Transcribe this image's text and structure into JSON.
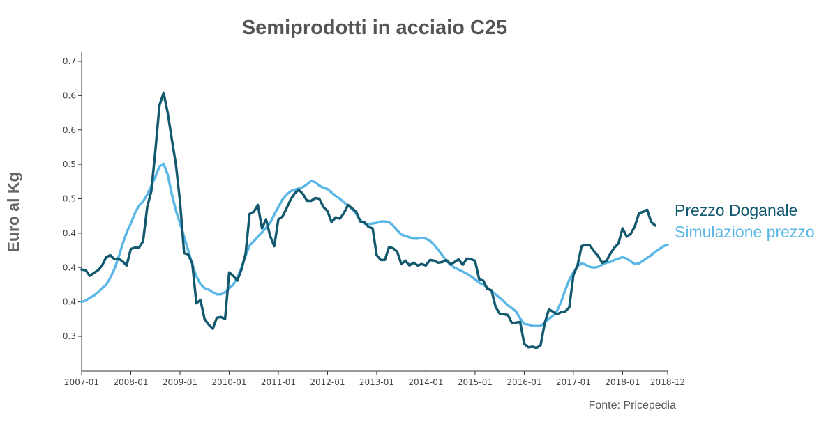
{
  "chart_data": {
    "type": "line",
    "title": "Semiprodotti in acciaio C25",
    "ylabel": "Euro al Kg",
    "xlabel": "",
    "source": "Fonte: Pricepedia",
    "ylim": [
      0.25,
      0.7
    ],
    "y_ticks": [
      0.3,
      0.35,
      0.4,
      0.45,
      0.5,
      0.55,
      0.6,
      0.65,
      0.7
    ],
    "y_tick_labels": [
      "0.3",
      "0.4",
      "0.4",
      "0.4",
      "0.5",
      "0.5",
      "0.6",
      "0.6",
      "0.7"
    ],
    "x_start": "2007-01",
    "x_end": "2018-12",
    "x_ticks": [
      "2007-01",
      "2008-01",
      "2009-01",
      "2010-01",
      "2011-01",
      "2012-01",
      "2013-01",
      "2014-01",
      "2015-01",
      "2016-01",
      "2017-01",
      "2018-01",
      "2018-12"
    ],
    "legend_position": "right",
    "series": [
      {
        "name": "Prezzo Doganale",
        "color": "#12586e",
        "points": [
          [
            "2007-01",
            0.397
          ],
          [
            "2007-02",
            0.396
          ],
          [
            "2007-03",
            0.388
          ],
          [
            "2007-04",
            0.392
          ],
          [
            "2007-05",
            0.396
          ],
          [
            "2007-06",
            0.403
          ],
          [
            "2007-07",
            0.415
          ],
          [
            "2007-08",
            0.418
          ],
          [
            "2007-09",
            0.412
          ],
          [
            "2007-10",
            0.413
          ],
          [
            "2007-11",
            0.409
          ],
          [
            "2007-12",
            0.403
          ],
          [
            "2008-01",
            0.427
          ],
          [
            "2008-02",
            0.429
          ],
          [
            "2008-03",
            0.429
          ],
          [
            "2008-04",
            0.438
          ],
          [
            "2008-05",
            0.488
          ],
          [
            "2008-06",
            0.511
          ],
          [
            "2008-07",
            0.57
          ],
          [
            "2008-08",
            0.636
          ],
          [
            "2008-09",
            0.654
          ],
          [
            "2008-10",
            0.625
          ],
          [
            "2008-11",
            0.587
          ],
          [
            "2008-12",
            0.55
          ],
          [
            "2009-01",
            0.496
          ],
          [
            "2009-02",
            0.421
          ],
          [
            "2009-03",
            0.419
          ],
          [
            "2009-04",
            0.406
          ],
          [
            "2009-05",
            0.348
          ],
          [
            "2009-06",
            0.353
          ],
          [
            "2009-07",
            0.325
          ],
          [
            "2009-08",
            0.317
          ],
          [
            "2009-09",
            0.311
          ],
          [
            "2009-10",
            0.327
          ],
          [
            "2009-11",
            0.328
          ],
          [
            "2009-12",
            0.325
          ],
          [
            "2010-01",
            0.393
          ],
          [
            "2010-02",
            0.388
          ],
          [
            "2010-03",
            0.381
          ],
          [
            "2010-04",
            0.397
          ],
          [
            "2010-05",
            0.42
          ],
          [
            "2010-06",
            0.478
          ],
          [
            "2010-07",
            0.481
          ],
          [
            "2010-08",
            0.491
          ],
          [
            "2010-09",
            0.457
          ],
          [
            "2010-10",
            0.47
          ],
          [
            "2010-11",
            0.446
          ],
          [
            "2010-12",
            0.431
          ],
          [
            "2011-01",
            0.47
          ],
          [
            "2011-02",
            0.474
          ],
          [
            "2011-03",
            0.486
          ],
          [
            "2011-04",
            0.499
          ],
          [
            "2011-05",
            0.508
          ],
          [
            "2011-06",
            0.513
          ],
          [
            "2011-07",
            0.507
          ],
          [
            "2011-08",
            0.497
          ],
          [
            "2011-09",
            0.497
          ],
          [
            "2011-10",
            0.501
          ],
          [
            "2011-11",
            0.5
          ],
          [
            "2011-12",
            0.488
          ],
          [
            "2012-01",
            0.482
          ],
          [
            "2012-02",
            0.466
          ],
          [
            "2012-03",
            0.473
          ],
          [
            "2012-04",
            0.471
          ],
          [
            "2012-05",
            0.479
          ],
          [
            "2012-06",
            0.491
          ],
          [
            "2012-07",
            0.486
          ],
          [
            "2012-08",
            0.481
          ],
          [
            "2012-09",
            0.467
          ],
          [
            "2012-10",
            0.466
          ],
          [
            "2012-11",
            0.459
          ],
          [
            "2012-12",
            0.457
          ],
          [
            "2013-01",
            0.418
          ],
          [
            "2013-02",
            0.411
          ],
          [
            "2013-03",
            0.411
          ],
          [
            "2013-04",
            0.43
          ],
          [
            "2013-05",
            0.428
          ],
          [
            "2013-06",
            0.423
          ],
          [
            "2013-07",
            0.405
          ],
          [
            "2013-08",
            0.41
          ],
          [
            "2013-09",
            0.403
          ],
          [
            "2013-10",
            0.407
          ],
          [
            "2013-11",
            0.403
          ],
          [
            "2013-12",
            0.405
          ],
          [
            "2014-01",
            0.403
          ],
          [
            "2014-02",
            0.411
          ],
          [
            "2014-03",
            0.41
          ],
          [
            "2014-04",
            0.407
          ],
          [
            "2014-05",
            0.408
          ],
          [
            "2014-06",
            0.411
          ],
          [
            "2014-07",
            0.405
          ],
          [
            "2014-08",
            0.408
          ],
          [
            "2014-09",
            0.412
          ],
          [
            "2014-10",
            0.404
          ],
          [
            "2014-11",
            0.413
          ],
          [
            "2014-12",
            0.412
          ],
          [
            "2015-01",
            0.41
          ],
          [
            "2015-02",
            0.383
          ],
          [
            "2015-03",
            0.381
          ],
          [
            "2015-04",
            0.369
          ],
          [
            "2015-05",
            0.367
          ],
          [
            "2015-06",
            0.343
          ],
          [
            "2015-07",
            0.333
          ],
          [
            "2015-08",
            0.332
          ],
          [
            "2015-09",
            0.331
          ],
          [
            "2015-10",
            0.319
          ],
          [
            "2015-11",
            0.32
          ],
          [
            "2015-12",
            0.321
          ],
          [
            "2016-01",
            0.289
          ],
          [
            "2016-02",
            0.284
          ],
          [
            "2016-03",
            0.285
          ],
          [
            "2016-04",
            0.283
          ],
          [
            "2016-05",
            0.287
          ],
          [
            "2016-06",
            0.319
          ],
          [
            "2016-07",
            0.339
          ],
          [
            "2016-08",
            0.336
          ],
          [
            "2016-09",
            0.332
          ],
          [
            "2016-10",
            0.335
          ],
          [
            "2016-11",
            0.336
          ],
          [
            "2016-12",
            0.342
          ],
          [
            "2017-01",
            0.389
          ],
          [
            "2017-02",
            0.403
          ],
          [
            "2017-03",
            0.431
          ],
          [
            "2017-04",
            0.433
          ],
          [
            "2017-05",
            0.432
          ],
          [
            "2017-06",
            0.424
          ],
          [
            "2017-07",
            0.417
          ],
          [
            "2017-08",
            0.407
          ],
          [
            "2017-09",
            0.409
          ],
          [
            "2017-10",
            0.42
          ],
          [
            "2017-11",
            0.429
          ],
          [
            "2017-12",
            0.435
          ],
          [
            "2018-01",
            0.457
          ],
          [
            "2018-02",
            0.445
          ],
          [
            "2018-03",
            0.449
          ],
          [
            "2018-04",
            0.46
          ],
          [
            "2018-05",
            0.479
          ],
          [
            "2018-06",
            0.481
          ],
          [
            "2018-07",
            0.484
          ],
          [
            "2018-08",
            0.466
          ],
          [
            "2018-09",
            0.461
          ]
        ]
      },
      {
        "name": "Simulazione prezzo",
        "color": "#5bb8e6",
        "points": [
          [
            "2007-01",
            0.35
          ],
          [
            "2007-02",
            0.352
          ],
          [
            "2007-03",
            0.356
          ],
          [
            "2007-04",
            0.359
          ],
          [
            "2007-05",
            0.364
          ],
          [
            "2007-06",
            0.37
          ],
          [
            "2007-07",
            0.375
          ],
          [
            "2007-08",
            0.385
          ],
          [
            "2007-09",
            0.398
          ],
          [
            "2007-10",
            0.415
          ],
          [
            "2007-11",
            0.434
          ],
          [
            "2007-12",
            0.451
          ],
          [
            "2008-01",
            0.464
          ],
          [
            "2008-02",
            0.479
          ],
          [
            "2008-03",
            0.49
          ],
          [
            "2008-04",
            0.496
          ],
          [
            "2008-05",
            0.506
          ],
          [
            "2008-06",
            0.519
          ],
          [
            "2008-07",
            0.532
          ],
          [
            "2008-08",
            0.547
          ],
          [
            "2008-09",
            0.551
          ],
          [
            "2008-10",
            0.535
          ],
          [
            "2008-11",
            0.507
          ],
          [
            "2008-12",
            0.483
          ],
          [
            "2009-01",
            0.464
          ],
          [
            "2009-02",
            0.445
          ],
          [
            "2009-03",
            0.425
          ],
          [
            "2009-04",
            0.405
          ],
          [
            "2009-05",
            0.387
          ],
          [
            "2009-06",
            0.376
          ],
          [
            "2009-07",
            0.37
          ],
          [
            "2009-08",
            0.368
          ],
          [
            "2009-09",
            0.364
          ],
          [
            "2009-10",
            0.361
          ],
          [
            "2009-11",
            0.361
          ],
          [
            "2009-12",
            0.364
          ],
          [
            "2010-01",
            0.37
          ],
          [
            "2010-02",
            0.375
          ],
          [
            "2010-03",
            0.385
          ],
          [
            "2010-04",
            0.4
          ],
          [
            "2010-05",
            0.417
          ],
          [
            "2010-06",
            0.432
          ],
          [
            "2010-07",
            0.438
          ],
          [
            "2010-08",
            0.445
          ],
          [
            "2010-09",
            0.451
          ],
          [
            "2010-10",
            0.458
          ],
          [
            "2010-11",
            0.465
          ],
          [
            "2010-12",
            0.477
          ],
          [
            "2011-01",
            0.488
          ],
          [
            "2011-02",
            0.499
          ],
          [
            "2011-03",
            0.506
          ],
          [
            "2011-04",
            0.511
          ],
          [
            "2011-05",
            0.513
          ],
          [
            "2011-06",
            0.515
          ],
          [
            "2011-07",
            0.517
          ],
          [
            "2011-08",
            0.521
          ],
          [
            "2011-09",
            0.526
          ],
          [
            "2011-10",
            0.524
          ],
          [
            "2011-11",
            0.519
          ],
          [
            "2011-12",
            0.516
          ],
          [
            "2012-01",
            0.514
          ],
          [
            "2012-02",
            0.509
          ],
          [
            "2012-03",
            0.504
          ],
          [
            "2012-04",
            0.5
          ],
          [
            "2012-05",
            0.495
          ],
          [
            "2012-06",
            0.49
          ],
          [
            "2012-07",
            0.485
          ],
          [
            "2012-08",
            0.478
          ],
          [
            "2012-09",
            0.469
          ],
          [
            "2012-10",
            0.464
          ],
          [
            "2012-11",
            0.463
          ],
          [
            "2012-12",
            0.464
          ],
          [
            "2013-01",
            0.465
          ],
          [
            "2013-02",
            0.467
          ],
          [
            "2013-03",
            0.467
          ],
          [
            "2013-04",
            0.466
          ],
          [
            "2013-05",
            0.461
          ],
          [
            "2013-06",
            0.454
          ],
          [
            "2013-07",
            0.448
          ],
          [
            "2013-08",
            0.446
          ],
          [
            "2013-09",
            0.444
          ],
          [
            "2013-10",
            0.442
          ],
          [
            "2013-11",
            0.442
          ],
          [
            "2013-12",
            0.443
          ],
          [
            "2014-01",
            0.442
          ],
          [
            "2014-02",
            0.439
          ],
          [
            "2014-03",
            0.433
          ],
          [
            "2014-04",
            0.426
          ],
          [
            "2014-05",
            0.418
          ],
          [
            "2014-06",
            0.41
          ],
          [
            "2014-07",
            0.404
          ],
          [
            "2014-08",
            0.4
          ],
          [
            "2014-09",
            0.397
          ],
          [
            "2014-10",
            0.394
          ],
          [
            "2014-11",
            0.391
          ],
          [
            "2014-12",
            0.387
          ],
          [
            "2015-01",
            0.383
          ],
          [
            "2015-02",
            0.378
          ],
          [
            "2015-03",
            0.375
          ],
          [
            "2015-04",
            0.371
          ],
          [
            "2015-05",
            0.366
          ],
          [
            "2015-06",
            0.361
          ],
          [
            "2015-07",
            0.356
          ],
          [
            "2015-08",
            0.351
          ],
          [
            "2015-09",
            0.345
          ],
          [
            "2015-10",
            0.341
          ],
          [
            "2015-11",
            0.336
          ],
          [
            "2015-12",
            0.326
          ],
          [
            "2016-01",
            0.318
          ],
          [
            "2016-02",
            0.317
          ],
          [
            "2016-03",
            0.315
          ],
          [
            "2016-04",
            0.315
          ],
          [
            "2016-05",
            0.315
          ],
          [
            "2016-06",
            0.32
          ],
          [
            "2016-07",
            0.325
          ],
          [
            "2016-08",
            0.33
          ],
          [
            "2016-09",
            0.337
          ],
          [
            "2016-10",
            0.35
          ],
          [
            "2016-11",
            0.367
          ],
          [
            "2016-12",
            0.382
          ],
          [
            "2017-01",
            0.393
          ],
          [
            "2017-02",
            0.402
          ],
          [
            "2017-03",
            0.406
          ],
          [
            "2017-04",
            0.404
          ],
          [
            "2017-05",
            0.401
          ],
          [
            "2017-06",
            0.4
          ],
          [
            "2017-07",
            0.401
          ],
          [
            "2017-08",
            0.404
          ],
          [
            "2017-09",
            0.407
          ],
          [
            "2017-10",
            0.408
          ],
          [
            "2017-11",
            0.411
          ],
          [
            "2017-12",
            0.413
          ],
          [
            "2018-01",
            0.415
          ],
          [
            "2018-02",
            0.413
          ],
          [
            "2018-03",
            0.409
          ],
          [
            "2018-04",
            0.405
          ],
          [
            "2018-05",
            0.406
          ],
          [
            "2018-06",
            0.41
          ],
          [
            "2018-07",
            0.414
          ],
          [
            "2018-08",
            0.418
          ],
          [
            "2018-09",
            0.423
          ],
          [
            "2018-10",
            0.427
          ],
          [
            "2018-11",
            0.431
          ],
          [
            "2018-12",
            0.433
          ]
        ]
      }
    ]
  }
}
